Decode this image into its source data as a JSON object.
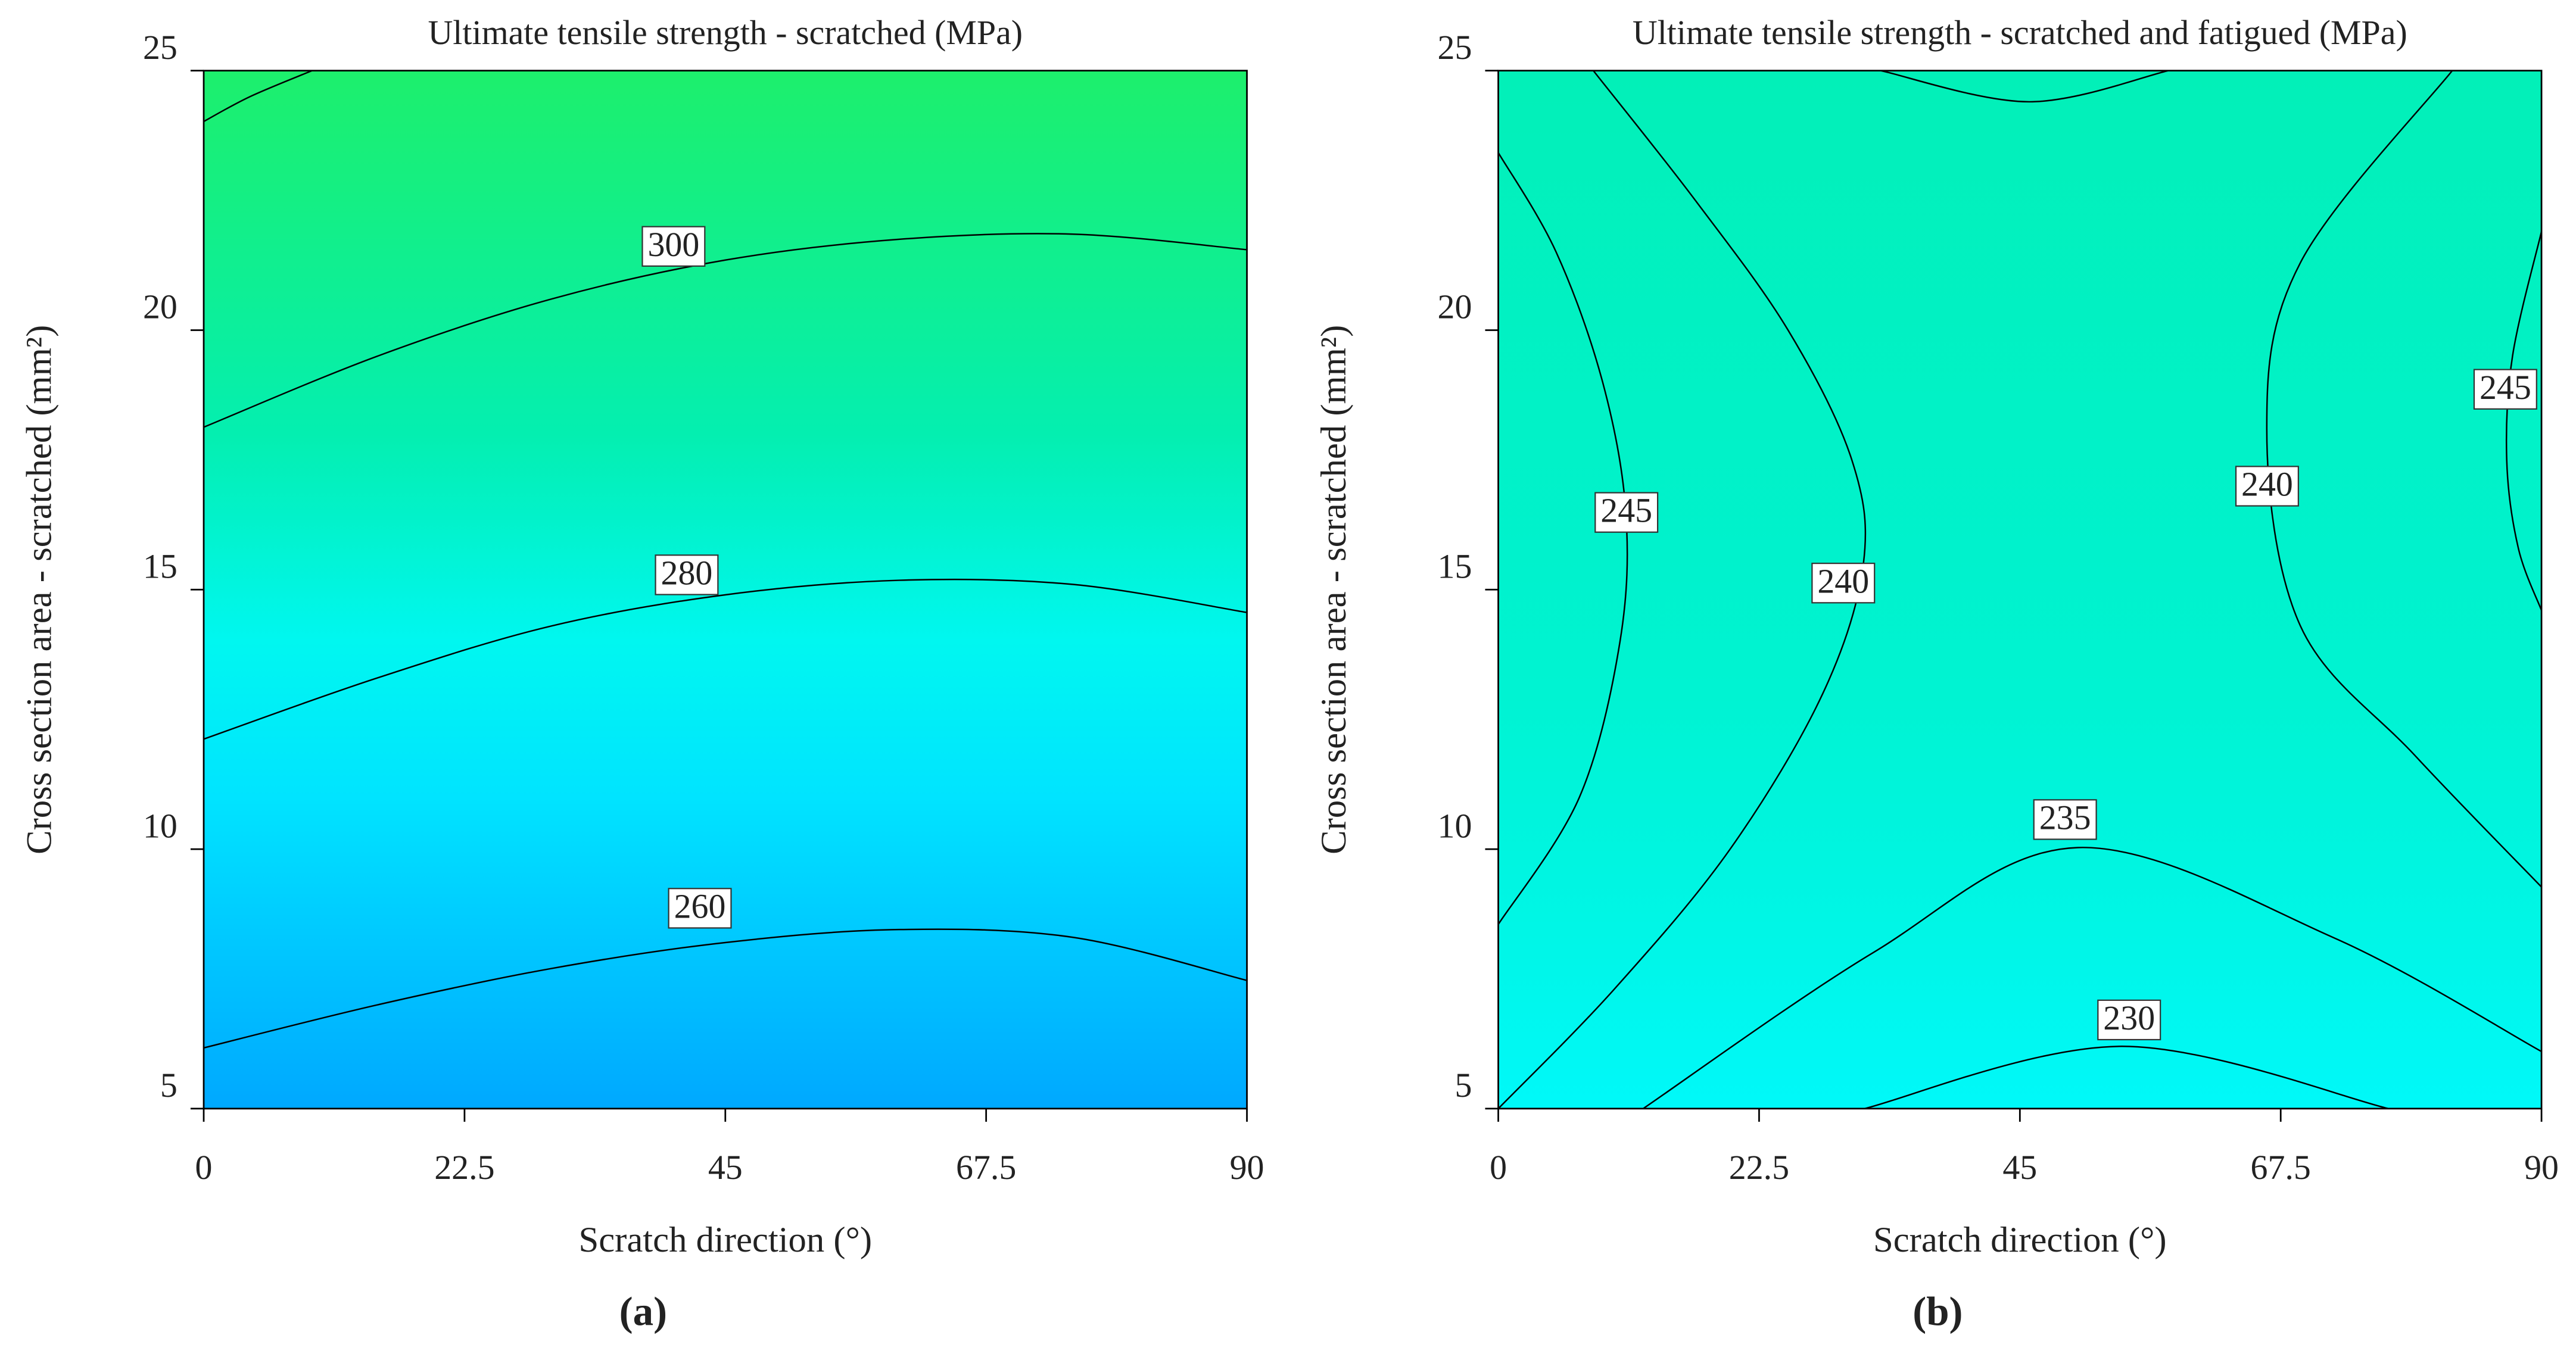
{
  "chart_data": [
    {
      "type": "contour",
      "title": "Ultimate tensile strength - scratched (MPa)",
      "x_label": "Scratch direction (°)",
      "y_label": "Cross section area - scratched (mm²)",
      "panel_label": "(a)",
      "xlim": [
        0,
        90
      ],
      "ylim": [
        5,
        25
      ],
      "xticks": [
        0,
        22.5,
        45,
        67.5,
        90
      ],
      "yticks": [
        5,
        10,
        15,
        20,
        25
      ],
      "line_color": "#000000",
      "gradient": [
        {
          "offset": 0,
          "color": "#1def6c"
        },
        {
          "offset": 0.35,
          "color": "#04efb0"
        },
        {
          "offset": 0.55,
          "color": "#00f7f0"
        },
        {
          "offset": 0.7,
          "color": "#00e4ff"
        },
        {
          "offset": 1,
          "color": "#00a8ff"
        }
      ],
      "contours": [
        {
          "level": 300,
          "x": [
            0,
            15,
            30,
            45,
            60,
            75,
            90
          ],
          "y": [
            18.13,
            19.5,
            20.6,
            21.35,
            21.75,
            21.85,
            21.55
          ]
        },
        {
          "level": 280,
          "x": [
            0,
            15,
            30,
            45,
            60,
            75,
            90
          ],
          "y": [
            12.12,
            13.3,
            14.3,
            14.9,
            15.18,
            15.1,
            14.56
          ]
        },
        {
          "level": 260,
          "x": [
            0,
            15,
            30,
            45,
            60,
            75,
            90
          ],
          "y": [
            6.17,
            7.0,
            7.7,
            8.2,
            8.45,
            8.3,
            7.47
          ]
        },
        {
          "x": [
            0,
            4,
            9.35
          ],
          "y": [
            24.02,
            24.5,
            25
          ]
        }
      ]
    },
    {
      "type": "contour",
      "title": "Ultimate tensile strength - scratched and fatigued (MPa)",
      "x_label": "Scratch direction (°)",
      "y_label": "Cross section area - scratched (mm²)",
      "panel_label": "(b)",
      "xlim": [
        0,
        90
      ],
      "ylim": [
        5,
        25
      ],
      "xticks": [
        0,
        22.5,
        45,
        67.5,
        90
      ],
      "yticks": [
        5,
        10,
        15,
        20,
        25
      ],
      "line_color": "#000000",
      "gradient": [
        {
          "offset": 0,
          "color": "#02f0b8"
        },
        {
          "offset": 0.6,
          "color": "#00f3d2"
        },
        {
          "offset": 0.85,
          "color": "#00f6e8"
        },
        {
          "offset": 1,
          "color": "#00f9f9"
        }
      ],
      "contours": [
        {
          "level": 245,
          "x": [
            0,
            5,
            9,
            11,
            10.5,
            7,
            0
          ],
          "y": [
            23.42,
            21.5,
            19,
            16.5,
            14,
            11,
            8.55
          ]
        },
        {
          "level": 240,
          "x": [
            8.2,
            17,
            25,
            30.5,
            31.5,
            28,
            20,
            10,
            0
          ],
          "y": [
            25,
            22.5,
            20,
            17.5,
            15.5,
            13,
            10,
            7.3,
            5
          ]
        },
        {
          "level": 240,
          "x": [
            82.3,
            69.2,
            66.3,
            69.2,
            79.1,
            90
          ],
          "y": [
            25,
            21.3,
            18.1,
            14.3,
            11.8,
            9.27
          ]
        },
        {
          "level": 245,
          "x": [
            90,
            87.5,
            87,
            88,
            90
          ],
          "y": [
            21.9,
            19.5,
            17.5,
            15.8,
            14.6
          ]
        },
        {
          "level": 235,
          "x": [
            12.5,
            32.3,
            50,
            72,
            90
          ],
          "y": [
            5,
            8.0,
            10.03,
            8.3,
            6.1
          ]
        },
        {
          "level": 230,
          "x": [
            31.6,
            53.8,
            76.8
          ],
          "y": [
            5,
            6.2,
            5
          ]
        },
        {
          "x": [
            33,
            45.8,
            57.8
          ],
          "y": [
            25,
            24.4,
            25
          ]
        }
      ]
    }
  ]
}
